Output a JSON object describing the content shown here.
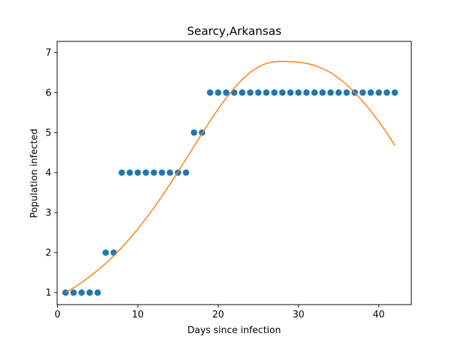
{
  "chart_data": {
    "type": "scatter",
    "title": "Searcy,Arkansas",
    "xlabel": "Days since infection",
    "ylabel": "Population infected",
    "xlim": [
      -0.05,
      44.05
    ],
    "ylim": [
      0.7,
      7.28
    ],
    "xticks": [
      0,
      10,
      20,
      30,
      40
    ],
    "yticks": [
      1,
      2,
      3,
      4,
      5,
      6,
      7
    ],
    "grid": false,
    "series": [
      {
        "kind": "scatter",
        "color": "#1f77b4",
        "x": [
          1,
          2,
          3,
          4,
          5,
          6,
          7,
          8,
          9,
          10,
          11,
          12,
          13,
          14,
          15,
          16,
          17,
          18,
          19,
          20,
          21,
          22,
          23,
          24,
          25,
          26,
          27,
          28,
          29,
          30,
          31,
          32,
          33,
          34,
          35,
          36,
          37,
          38,
          39,
          40,
          41,
          42
        ],
        "y": [
          1,
          1,
          1,
          1,
          1,
          2,
          2,
          4,
          4,
          4,
          4,
          4,
          4,
          4,
          4,
          4,
          5,
          5,
          6,
          6,
          6,
          6,
          6,
          6,
          6,
          6,
          6,
          6,
          6,
          6,
          6,
          6,
          6,
          6,
          6,
          6,
          6,
          6,
          6,
          6,
          6,
          6
        ]
      },
      {
        "kind": "line",
        "color": "#ff7f0e",
        "x": [
          1,
          2,
          3,
          4,
          5,
          6,
          7,
          8,
          9,
          10,
          11,
          12,
          13,
          14,
          15,
          16,
          17,
          18,
          19,
          20,
          21,
          22,
          23,
          24,
          25,
          26,
          27,
          28,
          29,
          30,
          31,
          32,
          33,
          34,
          35,
          36,
          37,
          38,
          39,
          40,
          41,
          42
        ],
        "y": [
          1.0,
          1.12,
          1.25,
          1.4,
          1.56,
          1.73,
          1.92,
          2.13,
          2.35,
          2.59,
          2.85,
          3.12,
          3.41,
          3.71,
          4.02,
          4.34,
          4.66,
          4.98,
          5.29,
          5.59,
          5.86,
          6.11,
          6.33,
          6.51,
          6.64,
          6.73,
          6.77,
          6.78,
          6.77,
          6.76,
          6.73,
          6.68,
          6.6,
          6.5,
          6.36,
          6.2,
          6.0,
          5.78,
          5.54,
          5.28,
          4.99,
          4.68
        ]
      }
    ]
  }
}
